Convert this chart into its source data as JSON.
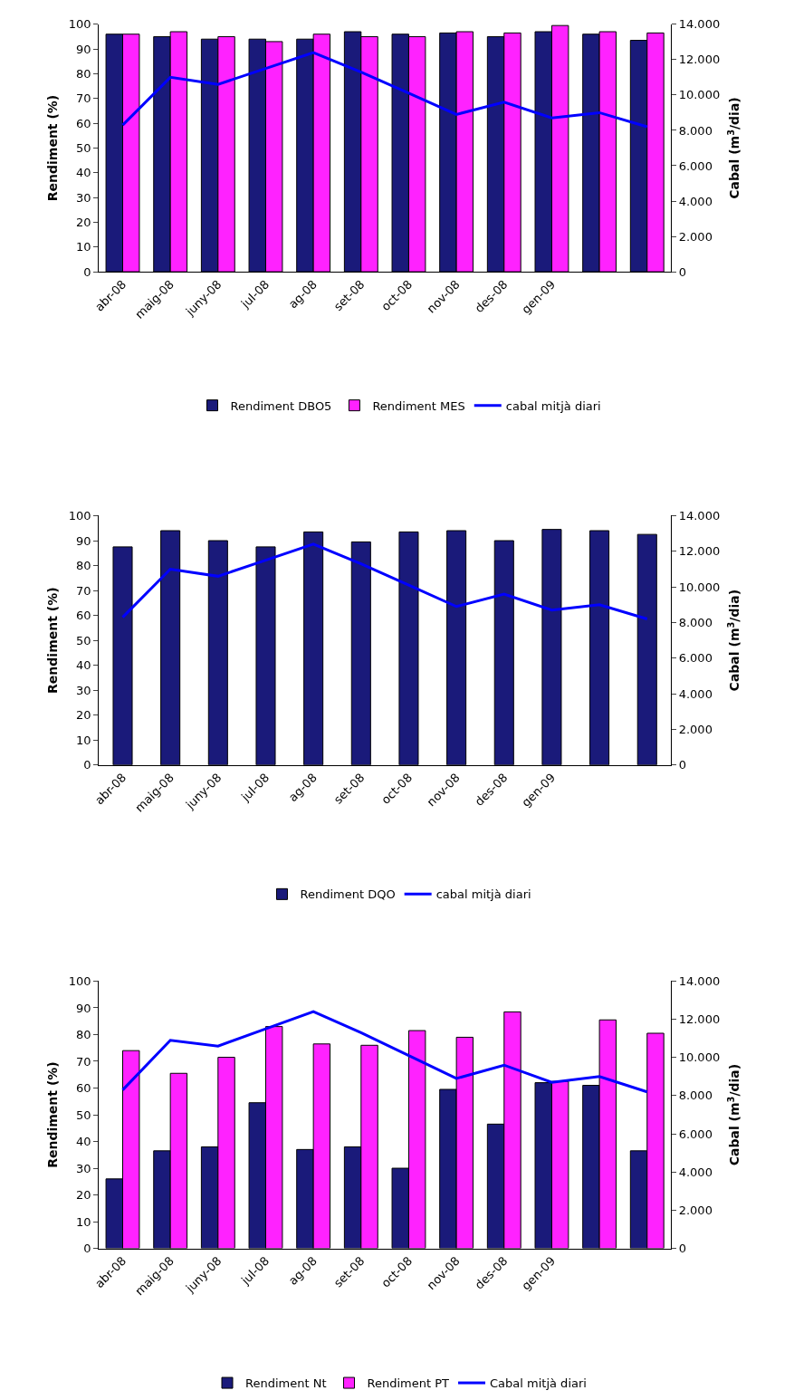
{
  "chart_data": [
    {
      "type": "bar",
      "categories": [
        "abr-08",
        "maig-08",
        "juny-08",
        "jul-08",
        "ag-08",
        "set-08",
        "oct-08",
        "nov-08",
        "des-08",
        "gen-09",
        null,
        null
      ],
      "ylabel": "Rendiment (%)",
      "y2label": "Cabal (m$^{3}$/dia)",
      "ylim": [
        0,
        100
      ],
      "yticks": [
        0,
        10,
        20,
        30,
        40,
        50,
        60,
        70,
        80,
        90,
        100
      ],
      "y2lim": [
        0,
        14000
      ],
      "y2ticks": [
        {
          "value": 0,
          "label": "0"
        },
        {
          "value": 2000,
          "label": "2.000"
        },
        {
          "value": 4000,
          "label": "4.000"
        },
        {
          "value": 6000,
          "label": "6.000"
        },
        {
          "value": 8000,
          "label": "8.000"
        },
        {
          "value": 10000,
          "label": "10.000"
        },
        {
          "value": 12000,
          "label": "12.000"
        },
        {
          "value": 14000,
          "label": "14.000"
        }
      ],
      "legend": "bottom",
      "series": [
        {
          "name": "Rendiment DBO5",
          "color": "#1a1a7a",
          "values": [
            96,
            95,
            94,
            94,
            94,
            97,
            96,
            96.5,
            95,
            97,
            96,
            93.5
          ]
        },
        {
          "name": "Rendiment MES",
          "color": "#ff22ff",
          "values": [
            96,
            97,
            95,
            93,
            96,
            95,
            95,
            97,
            96.5,
            99.5,
            97,
            96.5
          ]
        },
        {
          "name": "cabal mitjà diari",
          "color": "#0000ff",
          "type": "line",
          "axis": "y2",
          "marker": "none",
          "values": [
            8300,
            11000,
            10600,
            11500,
            12400,
            11300,
            10100,
            8900,
            9600,
            8700,
            9000,
            8200
          ]
        }
      ]
    },
    {
      "type": "bar",
      "categories": [
        "abr-08",
        "maig-08",
        "juny-08",
        "jul-08",
        "ag-08",
        "set-08",
        "oct-08",
        "nov-08",
        "des-08",
        "gen-09",
        null,
        null
      ],
      "ylabel": "Rendiment (%)",
      "y2label": "Cabal (m$^{3}$/dia)",
      "ylim": [
        0,
        100
      ],
      "yticks": [
        0,
        10,
        20,
        30,
        40,
        50,
        60,
        70,
        80,
        90,
        100
      ],
      "y2lim": [
        0,
        14000
      ],
      "y2ticks": [
        {
          "value": 0,
          "label": "0"
        },
        {
          "value": 2000,
          "label": "2.000"
        },
        {
          "value": 4000,
          "label": "4.000"
        },
        {
          "value": 6000,
          "label": "6.000"
        },
        {
          "value": 8000,
          "label": "8.000"
        },
        {
          "value": 10000,
          "label": "10.000"
        },
        {
          "value": 12000,
          "label": "12.000"
        },
        {
          "value": 14000,
          "label": "14.000"
        }
      ],
      "legend": "bottom",
      "series": [
        {
          "name": "Rendiment DQO",
          "color": "#1a1a7a",
          "values": [
            87.5,
            94,
            90,
            87.5,
            93.5,
            89.5,
            93.5,
            94,
            90,
            94.5,
            94,
            92.5
          ]
        },
        {
          "name": "cabal mitjà diari",
          "color": "#0000ff",
          "type": "line",
          "axis": "y2",
          "marker": "none",
          "values": [
            8300,
            11000,
            10600,
            11500,
            12400,
            11300,
            10100,
            8900,
            9600,
            8700,
            9000,
            8200
          ]
        }
      ]
    },
    {
      "type": "bar",
      "categories": [
        "abr-08",
        "maig-08",
        "juny-08",
        "jul-08",
        "ag-08",
        "set-08",
        "oct-08",
        "nov-08",
        "des-08",
        "gen-09",
        null,
        null
      ],
      "ylabel": "Rendiment (%)",
      "y2label": "Cabal (m$^{3}$/dia)",
      "ylim": [
        0,
        100
      ],
      "yticks": [
        0,
        10,
        20,
        30,
        40,
        50,
        60,
        70,
        80,
        90,
        100
      ],
      "y2lim": [
        0,
        14000
      ],
      "y2ticks": [
        {
          "value": 0,
          "label": "0"
        },
        {
          "value": 2000,
          "label": "2.000"
        },
        {
          "value": 4000,
          "label": "4.000"
        },
        {
          "value": 6000,
          "label": "6.000"
        },
        {
          "value": 8000,
          "label": "8.000"
        },
        {
          "value": 10000,
          "label": "10.000"
        },
        {
          "value": 12000,
          "label": "12.000"
        },
        {
          "value": 14000,
          "label": "14.000"
        }
      ],
      "legend": "bottom",
      "series": [
        {
          "name": "Rendiment Nt",
          "color": "#1a1a7a",
          "values": [
            26,
            36.5,
            38,
            54.5,
            37,
            38,
            30,
            59.5,
            46.5,
            62,
            61,
            36.5
          ]
        },
        {
          "name": "Rendiment PT",
          "color": "#ff22ff",
          "values": [
            74,
            65.5,
            71.5,
            83,
            76.5,
            76,
            81.5,
            79,
            88.5,
            62.5,
            85.5,
            80.5
          ]
        },
        {
          "name": "Cabal mitjà diari",
          "color": "#0000ff",
          "type": "line",
          "axis": "y2",
          "marker": "none",
          "values": [
            8300,
            10900,
            10600,
            11500,
            12400,
            11300,
            10100,
            8900,
            9600,
            8700,
            9000,
            8200
          ]
        }
      ]
    }
  ]
}
